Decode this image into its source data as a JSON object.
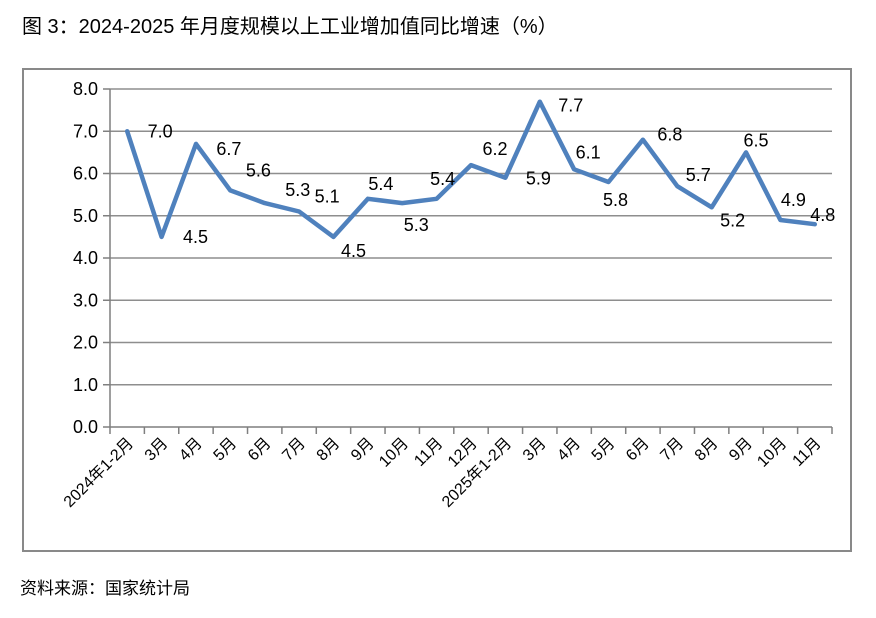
{
  "chart_data": {
    "type": "line",
    "title": "图 3：2024-2025 年月度规模以上工业增加值同比增速（%）",
    "source": "资料来源：国家统计局",
    "categories": [
      "2024年1-2月",
      "3月",
      "4月",
      "5月",
      "6月",
      "7月",
      "8月",
      "9月",
      "10月",
      "11月",
      "12月",
      "2025年1-2月",
      "3月",
      "4月",
      "5月",
      "6月",
      "7月",
      "8月",
      "9月",
      "10月",
      "11月"
    ],
    "values": [
      7.0,
      4.5,
      6.7,
      5.6,
      5.3,
      5.1,
      4.5,
      5.4,
      5.3,
      5.4,
      6.2,
      5.9,
      7.7,
      6.1,
      5.8,
      6.8,
      5.7,
      5.2,
      6.5,
      4.9,
      4.8
    ],
    "xlabel": "",
    "ylabel": "",
    "ylim": [
      0.0,
      8.0
    ],
    "ytick_step": 1.0,
    "ytick_labels": [
      "0.0",
      "1.0",
      "2.0",
      "3.0",
      "4.0",
      "5.0",
      "6.0",
      "7.0",
      "8.0"
    ],
    "grid": "horizontal",
    "legend": "none",
    "data_labels": true,
    "x_label_rotation": -45,
    "colors": {
      "line": "#4f81bd",
      "gridline": "#8e8e8e",
      "axis": "#7f7f7f",
      "frame_border": "#898989",
      "text": "#000000"
    }
  }
}
